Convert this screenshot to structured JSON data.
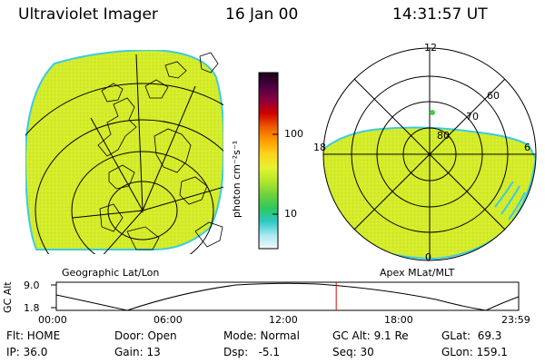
{
  "header": {
    "title": "Ultraviolet Imager",
    "date": "16 Jan 00",
    "time": "14:31:57 UT"
  },
  "colors": {
    "aurora_fill": "#d4ec2a",
    "aurora_edge": "#3ccbe0",
    "timeline_marker": "#dd0000",
    "green_spot": "#44cc44"
  },
  "colorbar": {
    "unit_label": "photon cm⁻²s⁻¹",
    "ticks": [
      "100",
      "10"
    ],
    "stops": [
      "#1a0018",
      "#4a0040",
      "#8a0040",
      "#cc0000",
      "#ee5a00",
      "#ff9a00",
      "#ffd21a",
      "#e6f230",
      "#b6e62a",
      "#6fd23c",
      "#2fc85c",
      "#2ec8c6",
      "#a8e8f0",
      "#f2f7f7"
    ]
  },
  "panels": {
    "left_label": "Geographic Lat/Lon",
    "right_label": "Apex MLat/MLT",
    "polar": {
      "mlt_labels": {
        "top": "12",
        "left": "18",
        "right": "6",
        "bottom": "0"
      },
      "lat_labels": [
        "60",
        "70",
        "80"
      ]
    }
  },
  "timeline": {
    "ylabel": "GC Alt",
    "y_ticks": [
      "9.0",
      "1.8"
    ],
    "x_ticks": [
      "00:00",
      "06:00",
      "12:00",
      "18:00",
      "23:59"
    ],
    "marker_time_hours": 14.53
  },
  "info": {
    "row1": {
      "flt": "Flt: HOME",
      "door": "Door: Open",
      "mode": "Mode: Normal",
      "gc_alt": "GC Alt: 9.1 Re",
      "glat": "GLat:  69.3"
    },
    "row2": {
      "ip": "IP: 36.0",
      "gain": "Gain: 13",
      "dsp": "Dsp:   -5.1",
      "seq": "Seq: 30",
      "glon": "GLon: 159.1"
    }
  }
}
